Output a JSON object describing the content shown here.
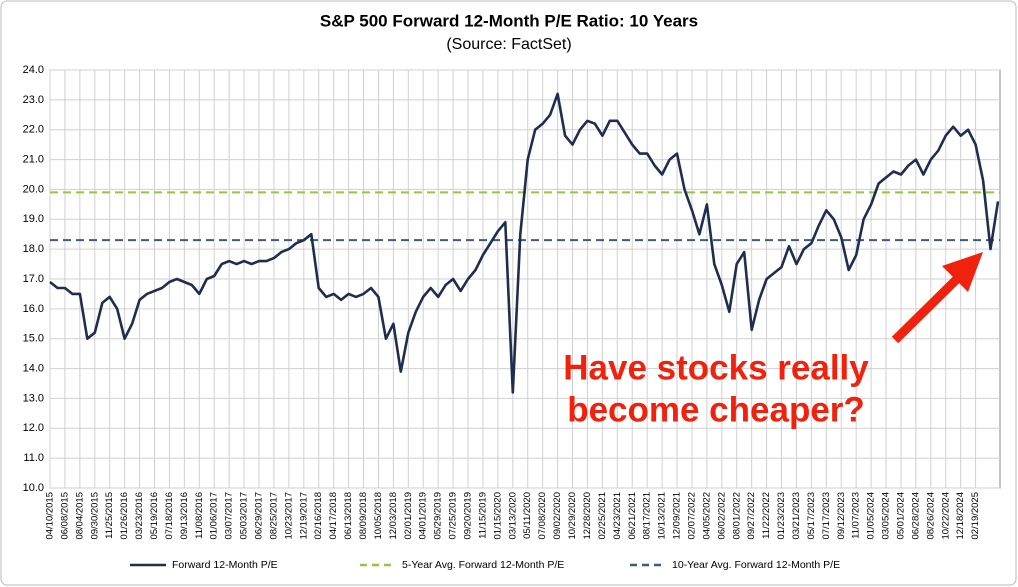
{
  "chart_data": {
    "type": "line",
    "title": "S&P 500 Forward 12-Month P/E Ratio: 10 Years",
    "subtitle": "(Source: FactSet)",
    "categories": [
      "04/10/2015",
      null,
      "06/08/2015",
      null,
      "08/04/2015",
      null,
      "09/30/2015",
      null,
      "11/25/2015",
      null,
      "01/26/2016",
      null,
      "03/23/2016",
      null,
      "05/19/2016",
      null,
      "07/18/2016",
      null,
      "09/13/2016",
      null,
      "11/08/2016",
      null,
      "01/06/2017",
      null,
      "03/07/2017",
      null,
      "05/03/2017",
      null,
      "06/29/2017",
      null,
      "08/25/2017",
      null,
      "10/23/2017",
      null,
      "12/19/2017",
      null,
      "02/16/2018",
      null,
      "04/17/2018",
      null,
      "06/13/2018",
      null,
      "08/09/2018",
      null,
      "10/05/2018",
      null,
      "12/03/2018",
      null,
      "02/01/2019",
      null,
      "04/01/2019",
      null,
      "05/29/2019",
      null,
      "07/25/2019",
      null,
      "09/20/2019",
      null,
      "11/15/2019",
      null,
      "01/15/2020",
      null,
      "03/13/2020",
      null,
      "05/11/2020",
      null,
      "07/08/2020",
      null,
      "09/02/2020",
      null,
      "10/29/2020",
      null,
      "12/28/2020",
      null,
      "02/25/2021",
      null,
      "04/23/2021",
      null,
      "06/21/2021",
      null,
      "08/17/2021",
      null,
      "10/13/2021",
      null,
      "12/09/2021",
      null,
      "02/07/2022",
      null,
      "04/05/2022",
      null,
      "06/02/2022",
      null,
      "08/01/2022",
      null,
      "09/27/2022",
      null,
      "11/22/2022",
      null,
      "01/23/2023",
      null,
      "03/21/2023",
      null,
      "05/17/2023",
      null,
      "07/17/2023",
      null,
      "09/12/2023",
      null,
      "11/07/2023",
      null,
      "01/05/2024",
      null,
      "03/05/2024",
      null,
      "05/01/2024",
      null,
      "06/28/2024",
      null,
      "08/26/2024",
      null,
      "10/22/2024",
      null,
      "12/18/2024",
      null,
      "02/19/2025",
      null,
      null,
      null
    ],
    "series": [
      {
        "name": "Forward 12-Month P/E",
        "color": "#1f2d4e",
        "values": [
          16.9,
          16.7,
          16.7,
          16.5,
          16.5,
          15.0,
          15.2,
          16.2,
          16.4,
          16.0,
          15.0,
          15.5,
          16.3,
          16.5,
          16.6,
          16.7,
          16.9,
          17.0,
          16.9,
          16.8,
          16.5,
          17.0,
          17.1,
          17.5,
          17.6,
          17.5,
          17.6,
          17.5,
          17.6,
          17.6,
          17.7,
          17.9,
          18.0,
          18.2,
          18.3,
          18.5,
          16.7,
          16.4,
          16.5,
          16.3,
          16.5,
          16.4,
          16.5,
          16.7,
          16.4,
          15.0,
          15.5,
          13.9,
          15.2,
          15.9,
          16.4,
          16.7,
          16.4,
          16.8,
          17.0,
          16.6,
          17.0,
          17.3,
          17.8,
          18.2,
          18.6,
          18.9,
          13.2,
          18.5,
          21.0,
          22.0,
          22.2,
          22.5,
          23.2,
          21.8,
          21.5,
          22.0,
          22.3,
          22.2,
          21.8,
          22.3,
          22.3,
          21.9,
          21.5,
          21.2,
          21.2,
          20.8,
          20.5,
          21.0,
          21.2,
          20.0,
          19.3,
          18.5,
          19.5,
          17.5,
          16.8,
          15.9,
          17.5,
          17.9,
          15.3,
          16.3,
          17.0,
          17.2,
          17.4,
          18.1,
          17.5,
          18.0,
          18.2,
          18.8,
          19.3,
          19.0,
          18.4,
          17.3,
          17.8,
          19.0,
          19.5,
          20.2,
          20.4,
          20.6,
          20.5,
          20.8,
          21.0,
          20.5,
          21.0,
          21.3,
          21.8,
          22.1,
          21.8,
          22.0,
          21.5,
          20.3,
          18.0,
          19.6
        ]
      }
    ],
    "reference_lines": [
      {
        "name": "5-Year Avg. Forward 12-Month P/E",
        "value": 19.9,
        "color": "#92c83e"
      },
      {
        "name": "10-Year Avg. Forward 12-Month P/E",
        "value": 18.3,
        "color": "#3f5a7f"
      }
    ],
    "ylim": [
      10,
      24
    ],
    "yticks": [
      {
        "value": 10,
        "label": "10.0"
      },
      {
        "value": 11,
        "label": "11.0"
      },
      {
        "value": 12,
        "label": "12.0"
      },
      {
        "value": 13,
        "label": "13.0"
      },
      {
        "value": 14,
        "label": "14.0"
      },
      {
        "value": 15,
        "label": "15.0"
      },
      {
        "value": 16,
        "label": "16.0"
      },
      {
        "value": 17,
        "label": "17.0"
      },
      {
        "value": 18,
        "label": "18.0"
      },
      {
        "value": 19,
        "label": "19.0"
      },
      {
        "value": 20,
        "label": "20.0"
      },
      {
        "value": 21,
        "label": "21.0"
      },
      {
        "value": 22,
        "label": "22.0"
      },
      {
        "value": 23,
        "label": "23.0"
      },
      {
        "value": 24,
        "label": "24.0"
      }
    ],
    "grid": true,
    "annotation": [
      "Have stocks really",
      "become cheaper?"
    ]
  }
}
